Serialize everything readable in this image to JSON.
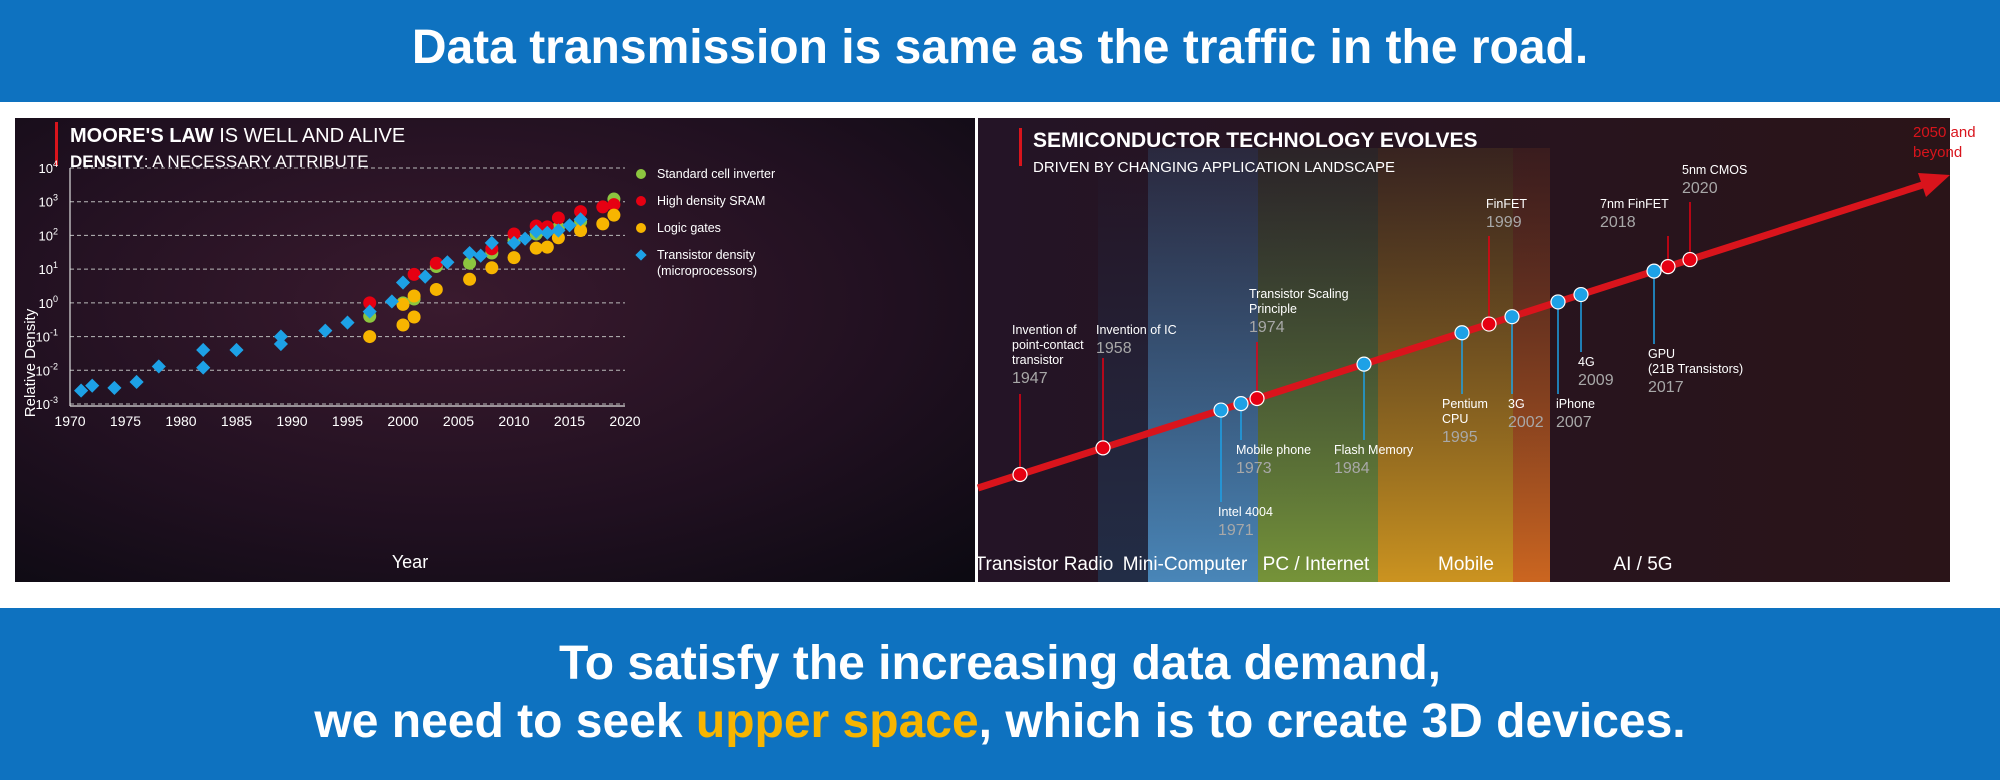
{
  "header": {
    "text": "Data transmission is same as the traffic in the road."
  },
  "footer": {
    "line1": "To satisfy the increasing data demand,",
    "line2_pre": "we need to seek ",
    "line2_highlight": "upper space",
    "line2_post": ", which is to create 3D devices."
  },
  "colors": {
    "banner": "#0e72c0",
    "highlight": "#f7b500",
    "accent_red": "#d9141c"
  },
  "chart_data": [
    {
      "type": "scatter",
      "title_bold": "MOORE'S LAW",
      "title_rest": " IS WELL AND ALIVE",
      "subtitle_bold": "DENSITY",
      "subtitle_rest": ": A NECESSARY ATTRIBUTE",
      "xlabel": "Year",
      "ylabel": "Relative Density",
      "xlim": [
        1970,
        2020
      ],
      "ylim_exponent": [
        -3,
        4
      ],
      "y_scale": "log",
      "xticks": [
        "1970",
        "1975",
        "1980",
        "1985",
        "1990",
        "1995",
        "2000",
        "2005",
        "2010",
        "2015",
        "2020"
      ],
      "yticks": [
        {
          "base": "10",
          "exp": "4"
        },
        {
          "base": "10",
          "exp": "3"
        },
        {
          "base": "10",
          "exp": "2"
        },
        {
          "base": "10",
          "exp": "1"
        },
        {
          "base": "10",
          "exp": "0"
        },
        {
          "base": "10",
          "exp": "-1"
        },
        {
          "base": "10",
          "exp": "-2"
        },
        {
          "base": "10",
          "exp": "-3"
        }
      ],
      "grid": true,
      "legend_position": "right",
      "series": [
        {
          "name": "Standard cell inverter",
          "color": "#8cc63f",
          "marker": "circle",
          "points": [
            [
              1997,
              0.4
            ],
            [
              2000,
              1.0
            ],
            [
              2001,
              1.3
            ],
            [
              2003,
              12
            ],
            [
              2006,
              15
            ],
            [
              2008,
              30
            ],
            [
              2010,
              70
            ],
            [
              2012,
              110
            ],
            [
              2014,
              170
            ],
            [
              2016,
              260
            ],
            [
              2019,
              1200
            ]
          ]
        },
        {
          "name": "High density SRAM",
          "color": "#e60012",
          "marker": "circle",
          "points": [
            [
              1997,
              1.0
            ],
            [
              2001,
              7
            ],
            [
              2003,
              15
            ],
            [
              2008,
              40
            ],
            [
              2010,
              110
            ],
            [
              2012,
              190
            ],
            [
              2013,
              180
            ],
            [
              2014,
              330
            ],
            [
              2016,
              510
            ],
            [
              2018,
              700
            ],
            [
              2019,
              820
            ]
          ]
        },
        {
          "name": "Logic gates",
          "color": "#f7b500",
          "marker": "circle",
          "points": [
            [
              1997,
              0.1
            ],
            [
              2000,
              0.22
            ],
            [
              2000,
              0.9
            ],
            [
              2001,
              0.38
            ],
            [
              2001,
              1.6
            ],
            [
              2003,
              2.5
            ],
            [
              2006,
              5
            ],
            [
              2008,
              11
            ],
            [
              2010,
              22
            ],
            [
              2012,
              42
            ],
            [
              2013,
              45
            ],
            [
              2014,
              85
            ],
            [
              2016,
              140
            ],
            [
              2018,
              220
            ],
            [
              2019,
              400
            ]
          ]
        },
        {
          "name": "Transistor density (microprocessors)",
          "color": "#1da1e6",
          "marker": "diamond",
          "points": [
            [
              1971,
              0.0025
            ],
            [
              1972,
              0.0035
            ],
            [
              1974,
              0.003
            ],
            [
              1976,
              0.0045
            ],
            [
              1978,
              0.013
            ],
            [
              1982,
              0.012
            ],
            [
              1982,
              0.04
            ],
            [
              1985,
              0.04
            ],
            [
              1989,
              0.06
            ],
            [
              1989,
              0.1
            ],
            [
              1993,
              0.15
            ],
            [
              1995,
              0.26
            ],
            [
              1997,
              0.55
            ],
            [
              1999,
              1.1
            ],
            [
              2000,
              4
            ],
            [
              2002,
              6
            ],
            [
              2004,
              16
            ],
            [
              2006,
              30
            ],
            [
              2007,
              25
            ],
            [
              2008,
              60
            ],
            [
              2010,
              60
            ],
            [
              2011,
              80
            ],
            [
              2012,
              130
            ],
            [
              2013,
              120
            ],
            [
              2014,
              140
            ],
            [
              2015,
              200
            ],
            [
              2016,
              300
            ]
          ]
        }
      ]
    },
    {
      "type": "line",
      "title": "SEMICONDUCTOR TECHNOLOGY EVOLVES",
      "subtitle": "DRIVEN BY CHANGING APPLICATION LANDSCAPE",
      "arrow_label": "2050 and beyond",
      "eras": [
        "Transistor Radio",
        "Mini-Computer",
        "PC / Internet",
        "Mobile",
        "AI / 5G"
      ],
      "milestones": [
        {
          "label": "Invention of point-contact transistor",
          "year": "1947",
          "color": "#e60012",
          "side": "above"
        },
        {
          "label": "Invention of IC",
          "year": "1958",
          "color": "#e60012",
          "side": "above"
        },
        {
          "label": "Intel 4004",
          "year": "1971",
          "color": "#1da1e6",
          "side": "below"
        },
        {
          "label": "Mobile phone",
          "year": "1973",
          "color": "#1da1e6",
          "side": "below"
        },
        {
          "label": "Transistor Scaling Principle",
          "year": "1974",
          "color": "#e60012",
          "side": "above"
        },
        {
          "label": "Flash Memory",
          "year": "1984",
          "color": "#1da1e6",
          "side": "below"
        },
        {
          "label": "Pentium CPU",
          "year": "1995",
          "color": "#1da1e6",
          "side": "below"
        },
        {
          "label": "FinFET",
          "year": "1999",
          "color": "#e60012",
          "side": "above"
        },
        {
          "label": "3G",
          "year": "2002",
          "color": "#1da1e6",
          "side": "below"
        },
        {
          "label": "iPhone",
          "year": "2007",
          "color": "#1da1e6",
          "side": "below"
        },
        {
          "label": "4G",
          "year": "2009",
          "color": "#1da1e6",
          "side": "below"
        },
        {
          "label": "GPU (21B Transistors)",
          "year": "2017",
          "color": "#1da1e6",
          "side": "below"
        },
        {
          "label": "7nm FinFET",
          "year": "2018",
          "color": "#e60012",
          "side": "above"
        },
        {
          "label": "5nm CMOS",
          "year": "2020",
          "color": "#e60012",
          "side": "above"
        }
      ]
    }
  ]
}
